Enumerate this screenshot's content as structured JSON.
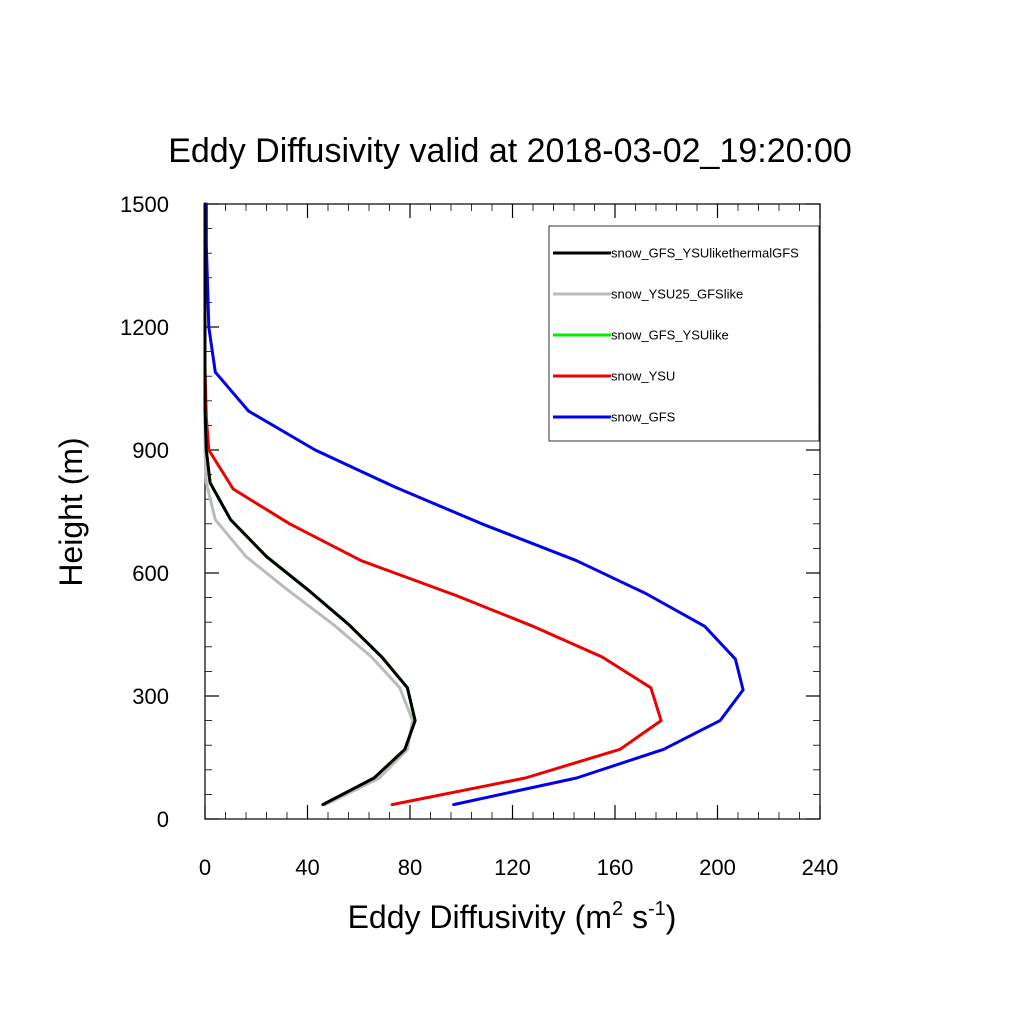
{
  "chart_data": {
    "type": "line",
    "title": "Eddy Diffusivity valid at 2018-03-02_19:20:00",
    "xlabel": {
      "main": "Eddy Diffusivity (m",
      "sup1": "2",
      "mid": " s",
      "sup2": "-1",
      "end": ")"
    },
    "ylabel": "Height (m)",
    "xlim": [
      0,
      240
    ],
    "ylim": [
      0,
      1500
    ],
    "x_ticks": [
      0,
      40,
      80,
      120,
      160,
      200,
      240
    ],
    "y_ticks": [
      0,
      300,
      600,
      900,
      1200,
      1500
    ],
    "x_tick_labels": [
      "0",
      "40",
      "80",
      "120",
      "160",
      "200",
      "240"
    ],
    "y_tick_labels": [
      "0",
      "300",
      "600",
      "900",
      "1200",
      "1500"
    ],
    "legend_position": "top-right",
    "series": [
      {
        "name": "snow_GFS_YSUlikethermalGFS",
        "color": "#000000",
        "points": [
          [
            46,
            35
          ],
          [
            66,
            100
          ],
          [
            78,
            170
          ],
          [
            82,
            240
          ],
          [
            79,
            320
          ],
          [
            69,
            395
          ],
          [
            56,
            475
          ],
          [
            40,
            560
          ],
          [
            24,
            640
          ],
          [
            10,
            730
          ],
          [
            2,
            820
          ],
          [
            0.5,
            900
          ],
          [
            0,
            1000
          ],
          [
            0,
            1100
          ],
          [
            0,
            1200
          ],
          [
            0,
            1300
          ],
          [
            0,
            1400
          ],
          [
            0,
            1500
          ]
        ]
      },
      {
        "name": "snow_YSU25_GFSlike",
        "color": "#bbbbbb",
        "points": [
          [
            47,
            35
          ],
          [
            68,
            100
          ],
          [
            79,
            170
          ],
          [
            81,
            240
          ],
          [
            76,
            320
          ],
          [
            65,
            395
          ],
          [
            50,
            475
          ],
          [
            32,
            560
          ],
          [
            16,
            640
          ],
          [
            4,
            730
          ],
          [
            0.5,
            820
          ],
          [
            0,
            900
          ],
          [
            0,
            1000
          ],
          [
            0,
            1100
          ],
          [
            0,
            1200
          ],
          [
            0,
            1300
          ],
          [
            0,
            1400
          ],
          [
            0,
            1500
          ]
        ]
      },
      {
        "name": "snow_GFS_YSUlike",
        "color": "#00ee00",
        "points": [
          [
            46,
            35
          ],
          [
            66,
            100
          ],
          [
            78,
            170
          ],
          [
            82,
            240
          ],
          [
            79,
            320
          ],
          [
            69,
            395
          ],
          [
            56,
            475
          ],
          [
            40,
            560
          ],
          [
            24,
            640
          ],
          [
            10,
            730
          ],
          [
            2,
            820
          ],
          [
            0.5,
            900
          ],
          [
            0,
            1000
          ],
          [
            0,
            1100
          ],
          [
            0,
            1200
          ],
          [
            0,
            1300
          ],
          [
            0,
            1400
          ],
          [
            0,
            1500
          ]
        ]
      },
      {
        "name": "snow_YSU",
        "color": "#ee0000",
        "points": [
          [
            73,
            35
          ],
          [
            125,
            100
          ],
          [
            162,
            170
          ],
          [
            178,
            240
          ],
          [
            174,
            320
          ],
          [
            155,
            395
          ],
          [
            128,
            470
          ],
          [
            98,
            545
          ],
          [
            61,
            630
          ],
          [
            33,
            720
          ],
          [
            11,
            805
          ],
          [
            1.5,
            900
          ],
          [
            0.5,
            980
          ],
          [
            0,
            1100
          ],
          [
            0,
            1200
          ],
          [
            0,
            1300
          ],
          [
            0,
            1400
          ],
          [
            0,
            1500
          ]
        ]
      },
      {
        "name": "snow_GFS",
        "color": "#0000ee",
        "points": [
          [
            97,
            35
          ],
          [
            145,
            100
          ],
          [
            179,
            170
          ],
          [
            201,
            240
          ],
          [
            210,
            315
          ],
          [
            207,
            390
          ],
          [
            195,
            470
          ],
          [
            172,
            550
          ],
          [
            145,
            630
          ],
          [
            108,
            720
          ],
          [
            74,
            810
          ],
          [
            43,
            900
          ],
          [
            17,
            995
          ],
          [
            4,
            1090
          ],
          [
            1.5,
            1200
          ],
          [
            1,
            1300
          ],
          [
            0.5,
            1400
          ],
          [
            0.5,
            1500
          ]
        ]
      }
    ]
  }
}
